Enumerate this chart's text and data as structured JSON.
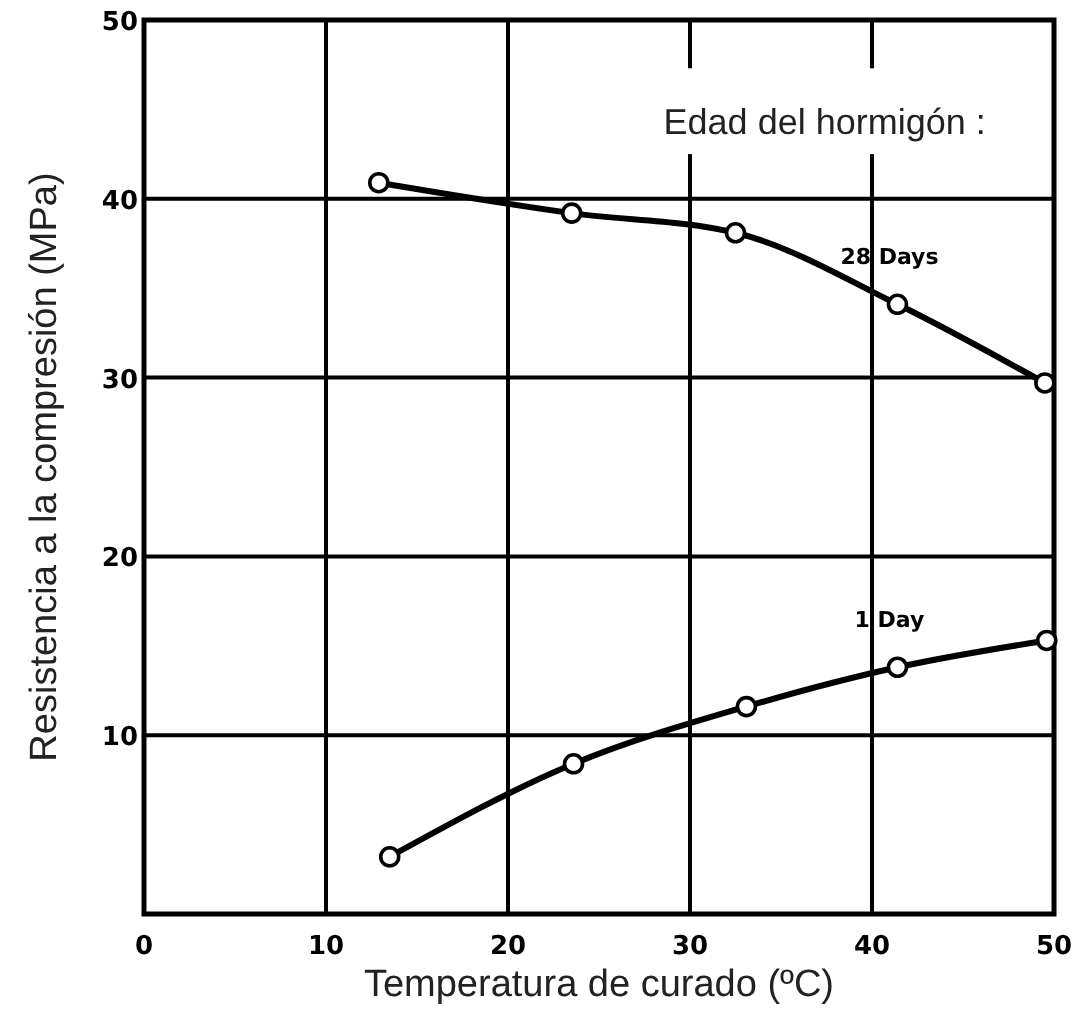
{
  "chart_data": {
    "type": "line",
    "xlabel": "Temperatura de curado (ºC)",
    "ylabel": "Resistencia a la compresión (MPa)",
    "legend_title": "Edad del hormigón :",
    "xlim": [
      0,
      50
    ],
    "xticks": [
      0,
      10,
      20,
      30,
      40,
      50
    ],
    "ylim": [
      0,
      50
    ],
    "yticks": [
      10,
      20,
      30,
      40,
      50
    ],
    "grid": true,
    "marker": "circle",
    "line_style": "solid",
    "series": [
      {
        "name": "28 Days",
        "color": "#000000",
        "x": [
          12.9,
          23.5,
          32.5,
          41.4,
          49.5
        ],
        "values": [
          40.9,
          39.2,
          38.1,
          34.1,
          29.7
        ]
      },
      {
        "name": "1 Day",
        "color": "#000000",
        "x": [
          13.5,
          23.6,
          33.1,
          41.4,
          49.6
        ],
        "values": [
          3.2,
          8.4,
          11.6,
          13.8,
          15.3
        ]
      }
    ]
  }
}
